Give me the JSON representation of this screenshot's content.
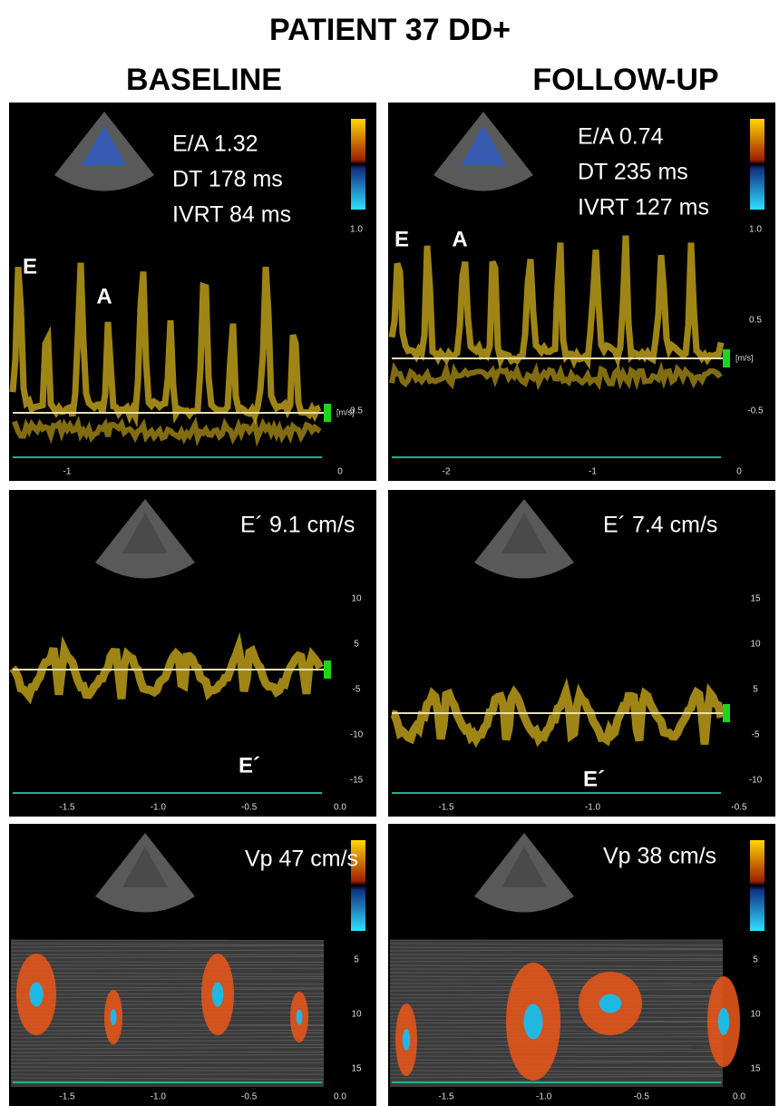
{
  "title": "PATIENT 37 DD+",
  "columns": [
    {
      "header": "BASELINE",
      "panels": [
        {
          "measurements": [
            "E/A 1.32",
            "DT 178 ms",
            "IVRT 84 ms"
          ],
          "labels": [
            "E",
            "A"
          ],
          "unit": "[m/s]",
          "scale": [
            "1.0",
            "0.5"
          ],
          "time": [
            "-1",
            "0"
          ]
        },
        {
          "measurements": [
            "E´ 9.1 cm/s"
          ],
          "labels": [
            "E´"
          ],
          "scale": [
            "10",
            "5",
            "-5",
            "-10",
            "-15"
          ],
          "time": [
            "-1.5",
            "-1.0",
            "-0.5",
            "0.0"
          ]
        },
        {
          "measurements": [
            "Vp 47 cm/s"
          ],
          "scale": [
            "5",
            "10",
            "15"
          ],
          "time": [
            "-1.5",
            "-1.0",
            "-0.5",
            "0.0"
          ]
        }
      ]
    },
    {
      "header": "FOLLOW-UP",
      "panels": [
        {
          "measurements": [
            "E/A 0.74",
            "DT 235 ms",
            "IVRT 127 ms"
          ],
          "labels": [
            "E",
            "A"
          ],
          "unit": "[m/s]",
          "scale": [
            "1.0",
            "0.5",
            "-0.5"
          ],
          "time": [
            "-2",
            "-1",
            "0"
          ]
        },
        {
          "measurements": [
            "E´ 7.4 cm/s"
          ],
          "labels": [
            "E´"
          ],
          "scale": [
            "15",
            "10",
            "5",
            "-5",
            "-10"
          ],
          "time": [
            "-1.5",
            "-1.0",
            "-0.5"
          ]
        },
        {
          "measurements": [
            "Vp 38 cm/s"
          ],
          "scale": [
            "5",
            "10",
            "15"
          ],
          "time": [
            "-1.5",
            "-1.0",
            "-0.5",
            "0.0"
          ]
        }
      ]
    }
  ]
}
